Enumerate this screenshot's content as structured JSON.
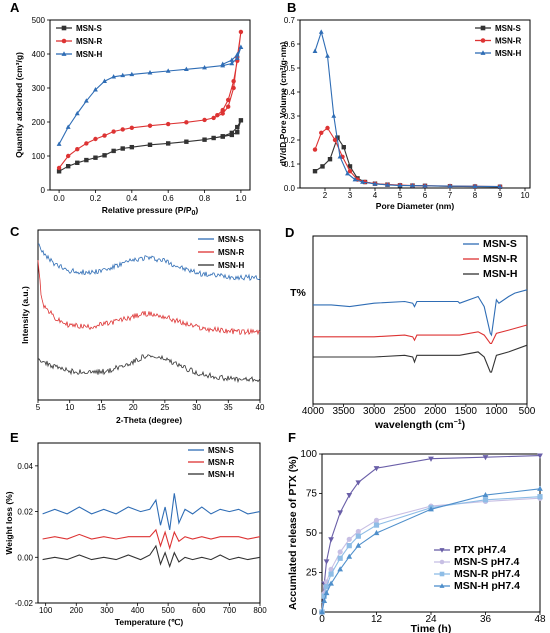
{
  "chart_data": [
    {
      "id": "A",
      "panel_label": "A",
      "type": "line",
      "xlabel": "Relative pressure (P/P",
      "xlabel_sub": "0",
      "xlabel_end": ")",
      "ylabel": "Quantity adsorbed (cm³/g)",
      "xlim": [
        -0.05,
        1.05
      ],
      "ylim": [
        0,
        500
      ],
      "xticks": [
        0.0,
        0.2,
        0.4,
        0.6,
        0.8,
        1.0
      ],
      "xtick_labels": [
        "0.0",
        "0.2",
        "0.4",
        "0.6",
        "0.8",
        "1.0"
      ],
      "yticks": [
        0,
        100,
        200,
        300,
        400,
        500
      ],
      "ytick_labels": [
        "0",
        "100",
        "200",
        "300",
        "400",
        "500"
      ],
      "legend": "top-left",
      "series": [
        {
          "name": "MSN-S",
          "color": "#333333",
          "marker": "square",
          "x": [
            0.0,
            0.05,
            0.1,
            0.15,
            0.2,
            0.25,
            0.3,
            0.35,
            0.4,
            0.5,
            0.6,
            0.7,
            0.8,
            0.9,
            0.95,
            0.98,
            1.0,
            0.98,
            0.95,
            0.9,
            0.85
          ],
          "y": [
            55,
            70,
            80,
            88,
            95,
            102,
            115,
            122,
            126,
            133,
            137,
            142,
            148,
            158,
            168,
            185,
            205,
            170,
            162,
            157,
            153
          ]
        },
        {
          "name": "MSN-R",
          "color": "#dd3333",
          "marker": "circle",
          "x": [
            0.0,
            0.05,
            0.1,
            0.15,
            0.2,
            0.25,
            0.3,
            0.35,
            0.4,
            0.5,
            0.6,
            0.7,
            0.8,
            0.85,
            0.9,
            0.93,
            0.96,
            0.98,
            1.0,
            0.98,
            0.96,
            0.93,
            0.9,
            0.87
          ],
          "y": [
            65,
            100,
            120,
            137,
            150,
            160,
            172,
            178,
            183,
            189,
            194,
            199,
            206,
            212,
            225,
            245,
            300,
            390,
            465,
            380,
            320,
            265,
            235,
            220
          ]
        },
        {
          "name": "MSN-H",
          "color": "#2f6db5",
          "marker": "triangle",
          "x": [
            0.0,
            0.05,
            0.1,
            0.15,
            0.2,
            0.25,
            0.3,
            0.35,
            0.4,
            0.5,
            0.6,
            0.7,
            0.8,
            0.9,
            0.95,
            0.98,
            1.0,
            0.98,
            0.95,
            0.9
          ],
          "y": [
            135,
            185,
            225,
            262,
            295,
            320,
            333,
            337,
            340,
            345,
            350,
            355,
            360,
            366,
            372,
            388,
            420,
            398,
            382,
            370
          ]
        }
      ]
    },
    {
      "id": "B",
      "panel_label": "B",
      "type": "line",
      "xlabel": "Pore Diameter (nm)",
      "ylabel": "dV/dD Pore Volume (cm³/g·nm)",
      "xlim": [
        1,
        10.2
      ],
      "ylim": [
        0,
        0.7
      ],
      "xticks": [
        2,
        3,
        4,
        5,
        6,
        7,
        8,
        9,
        10
      ],
      "xtick_labels": [
        "2",
        "3",
        "4",
        "5",
        "6",
        "7",
        "8",
        "9",
        "10"
      ],
      "yticks": [
        0.0,
        0.1,
        0.2,
        0.3,
        0.4,
        0.5,
        0.6,
        0.7
      ],
      "ytick_labels": [
        "0.0",
        "0.1",
        "0.2",
        "0.3",
        "0.4",
        "0.5",
        "0.6",
        "0.7"
      ],
      "legend": "top-right",
      "series": [
        {
          "name": "MSN-S",
          "color": "#333333",
          "marker": "square",
          "x": [
            1.6,
            1.9,
            2.2,
            2.5,
            2.75,
            3.0,
            3.3,
            3.6,
            4.0,
            4.5,
            5,
            5.5,
            6,
            7,
            8,
            9
          ],
          "y": [
            0.07,
            0.09,
            0.12,
            0.21,
            0.17,
            0.09,
            0.04,
            0.025,
            0.018,
            0.014,
            0.011,
            0.01,
            0.009,
            0.007,
            0.006,
            0.005
          ]
        },
        {
          "name": "MSN-R",
          "color": "#dd3333",
          "marker": "circle",
          "x": [
            1.6,
            1.85,
            2.1,
            2.4,
            2.7,
            3.0,
            3.3,
            3.6,
            4.0,
            4.5,
            5,
            5.5,
            6,
            7,
            8,
            9
          ],
          "y": [
            0.16,
            0.23,
            0.25,
            0.2,
            0.13,
            0.07,
            0.035,
            0.025,
            0.018,
            0.014,
            0.012,
            0.01,
            0.009,
            0.008,
            0.007,
            0.006
          ]
        },
        {
          "name": "MSN-H",
          "color": "#2f6db5",
          "marker": "triangle",
          "x": [
            1.6,
            1.85,
            2.1,
            2.35,
            2.6,
            2.9,
            3.2,
            3.5,
            4.0,
            4.5,
            5,
            5.5,
            6,
            7,
            8,
            9
          ],
          "y": [
            0.57,
            0.65,
            0.55,
            0.3,
            0.13,
            0.06,
            0.035,
            0.025,
            0.017,
            0.013,
            0.011,
            0.01,
            0.009,
            0.008,
            0.007,
            0.006
          ]
        }
      ]
    },
    {
      "id": "C",
      "panel_label": "C",
      "type": "line",
      "xlabel": "2-Theta (degree)",
      "ylabel": "Intensity (a.u.)",
      "xlim": [
        5,
        40
      ],
      "ylim": [
        0,
        100
      ],
      "xticks": [
        5,
        10,
        15,
        20,
        25,
        30,
        35,
        40
      ],
      "xtick_labels": [
        "5",
        "10",
        "15",
        "20",
        "25",
        "30",
        "35",
        "40"
      ],
      "yticks": [],
      "legend": "top-right",
      "noise": true,
      "series": [
        {
          "name": "MSN-S",
          "color": "#2f6db5",
          "x": [
            5,
            6,
            8,
            10,
            13,
            16,
            19,
            22,
            25,
            28,
            31,
            34,
            37,
            40
          ],
          "y": [
            93,
            85,
            79,
            76,
            75,
            77,
            81,
            84,
            82,
            77,
            74,
            73,
            72,
            72
          ]
        },
        {
          "name": "MSN-R",
          "color": "#dd3333",
          "x": [
            5,
            5.5,
            6,
            8,
            10,
            13,
            16,
            19,
            22,
            25,
            28,
            31,
            34,
            37,
            40
          ],
          "y": [
            82,
            62,
            55,
            47,
            44,
            43,
            45,
            48,
            51,
            49,
            45,
            42,
            41,
            40,
            40
          ]
        },
        {
          "name": "MSN-H",
          "color": "#333333",
          "x": [
            5,
            6,
            8,
            10,
            13,
            16,
            19,
            22,
            25,
            28,
            31,
            34,
            37,
            40
          ],
          "y": [
            25,
            22,
            19,
            17,
            16,
            17,
            21,
            26,
            24,
            19,
            15,
            13,
            12,
            12
          ]
        }
      ]
    },
    {
      "id": "D",
      "panel_label": "D",
      "type": "line",
      "xlabel": "wavelength (cm",
      "xlabel_sup": "−1",
      "xlabel_end": ")",
      "ylabel": "T%",
      "xlim": [
        4000,
        500
      ],
      "ylim": [
        0,
        100
      ],
      "xticks": [
        4000,
        3500,
        3000,
        2500,
        2000,
        1500,
        1000,
        500
      ],
      "xtick_labels": [
        "4000",
        "3500",
        "3000",
        "2500",
        "2000",
        "1500",
        "1000",
        "500"
      ],
      "yticks": [],
      "legend": "top-right",
      "series": [
        {
          "name": "MSN-S",
          "color": "#2f6db5",
          "x": [
            4000,
            3700,
            3400,
            3000,
            2500,
            2370,
            2340,
            2300,
            2000,
            1630,
            1600,
            1300,
            1200,
            1100,
            1080,
            1000,
            960,
            800,
            700,
            500
          ],
          "y": [
            59,
            59,
            58,
            60,
            61,
            60,
            58,
            61,
            61,
            61,
            60,
            64,
            58,
            42,
            41,
            62,
            60,
            64,
            66,
            68
          ]
        },
        {
          "name": "MSN-R",
          "color": "#dd3333",
          "x": [
            4000,
            3500,
            3000,
            2500,
            2370,
            2340,
            2300,
            2000,
            1600,
            1300,
            1200,
            1100,
            1080,
            1000,
            800,
            500
          ],
          "y": [
            40,
            40,
            40,
            41,
            40,
            38,
            41,
            41,
            41,
            43,
            41,
            36,
            36,
            42,
            44,
            47
          ]
        },
        {
          "name": "MSN-H",
          "color": "#333333",
          "x": [
            4000,
            3500,
            3000,
            2500,
            2370,
            2340,
            2300,
            2000,
            1600,
            1300,
            1200,
            1100,
            1080,
            1000,
            800,
            500
          ],
          "y": [
            28,
            28,
            28,
            29,
            28,
            25,
            29,
            29,
            29,
            31,
            28,
            19,
            19,
            29,
            31,
            35
          ]
        }
      ]
    },
    {
      "id": "E",
      "panel_label": "E",
      "type": "line",
      "xlabel": "Temperature (℃)",
      "ylabel": "Weight loss (%)",
      "xlim": [
        75,
        800
      ],
      "ylim": [
        -0.02,
        0.05
      ],
      "xticks": [
        100,
        200,
        300,
        400,
        500,
        600,
        700,
        800
      ],
      "xtick_labels": [
        "100",
        "200",
        "300",
        "400",
        "500",
        "600",
        "700",
        "800"
      ],
      "yticks": [
        -0.02,
        0.0,
        0.02,
        0.04
      ],
      "ytick_labels": [
        "-0.02",
        "0.00",
        "0.02",
        "0.04"
      ],
      "legend": "top-right",
      "series": [
        {
          "name": "MSN-S",
          "color": "#2f6db5",
          "x": [
            90,
            130,
            170,
            210,
            250,
            290,
            330,
            370,
            410,
            440,
            460,
            475,
            490,
            505,
            520,
            535,
            555,
            580,
            610,
            640,
            670,
            700,
            730,
            760,
            800
          ],
          "y": [
            0.019,
            0.021,
            0.019,
            0.022,
            0.019,
            0.021,
            0.019,
            0.022,
            0.02,
            0.021,
            0.025,
            0.014,
            0.022,
            0.012,
            0.028,
            0.015,
            0.021,
            0.019,
            0.022,
            0.019,
            0.021,
            0.02,
            0.021,
            0.019,
            0.02
          ]
        },
        {
          "name": "MSN-R",
          "color": "#dd3333",
          "x": [
            90,
            130,
            170,
            210,
            250,
            290,
            330,
            370,
            410,
            440,
            460,
            475,
            490,
            505,
            520,
            535,
            555,
            580,
            610,
            640,
            670,
            700,
            730,
            760,
            800
          ],
          "y": [
            0.008,
            0.009,
            0.008,
            0.01,
            0.008,
            0.009,
            0.008,
            0.009,
            0.009,
            0.009,
            0.012,
            0.005,
            0.011,
            0.004,
            0.011,
            0.007,
            0.009,
            0.008,
            0.009,
            0.008,
            0.009,
            0.009,
            0.009,
            0.008,
            0.009
          ]
        },
        {
          "name": "MSN-H",
          "color": "#333333",
          "x": [
            90,
            130,
            170,
            210,
            250,
            290,
            330,
            370,
            410,
            440,
            460,
            475,
            490,
            505,
            520,
            535,
            555,
            580,
            610,
            640,
            670,
            700,
            730,
            760,
            800
          ],
          "y": [
            -0.001,
            0.0,
            -0.001,
            0.001,
            -0.001,
            0.0,
            -0.001,
            0.001,
            -0.001,
            0.001,
            0.005,
            -0.003,
            0.002,
            -0.004,
            0.002,
            -0.002,
            0.0,
            -0.001,
            0.0,
            -0.001,
            0.001,
            -0.001,
            0.0,
            -0.001,
            0.0
          ]
        }
      ]
    },
    {
      "id": "F",
      "panel_label": "F",
      "type": "line",
      "xlabel": "Time (h)",
      "ylabel": "Accumlated release of PTX (%)",
      "xlim": [
        0,
        48
      ],
      "ylim": [
        0,
        100
      ],
      "xticks": [
        0,
        12,
        24,
        36,
        48
      ],
      "xtick_labels": [
        "0",
        "12",
        "24",
        "36",
        "48"
      ],
      "yticks": [
        0,
        25,
        50,
        75,
        100
      ],
      "ytick_labels": [
        "0",
        "25",
        "50",
        "75",
        "100"
      ],
      "legend": "bottom-right",
      "series": [
        {
          "name": "PTX pH7.4",
          "color": "#6a5fa8",
          "marker": "triangle-down",
          "x": [
            0,
            0.5,
            1,
            2,
            4,
            6,
            8,
            12,
            24,
            36,
            48
          ],
          "y": [
            0,
            18,
            32,
            46,
            63,
            74,
            82,
            91,
            97,
            98,
            99
          ]
        },
        {
          "name": "MSN-S pH7.4",
          "color": "#c7bfe4",
          "marker": "circle",
          "x": [
            0,
            0.5,
            1,
            2,
            4,
            6,
            8,
            12,
            24,
            36,
            48
          ],
          "y": [
            0,
            12,
            19,
            27,
            38,
            46,
            51,
            58,
            67,
            70,
            72
          ]
        },
        {
          "name": "MSN-R pH7.4",
          "color": "#8fbde6",
          "marker": "square",
          "x": [
            0,
            0.5,
            1,
            2,
            4,
            6,
            8,
            12,
            24,
            36,
            48
          ],
          "y": [
            0,
            10,
            16,
            24,
            34,
            42,
            48,
            55,
            66,
            71,
            73
          ]
        },
        {
          "name": "MSN-H pH7.4",
          "color": "#4f8fcb",
          "marker": "triangle",
          "x": [
            0,
            0.5,
            1,
            2,
            4,
            6,
            8,
            12,
            24,
            36,
            48
          ],
          "y": [
            0,
            7,
            12,
            18,
            27,
            35,
            42,
            50,
            65,
            74,
            78
          ]
        }
      ]
    }
  ]
}
